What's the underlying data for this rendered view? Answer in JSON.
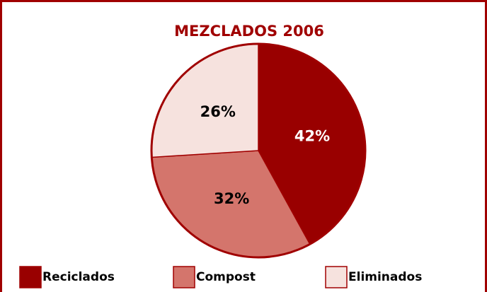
{
  "chart_data": {
    "type": "pie",
    "title": "MEZCLADOS 2006",
    "categories": [
      "Reciclados",
      "Compost",
      "Eliminados"
    ],
    "values": [
      42,
      32,
      26
    ],
    "value_labels": [
      "42%",
      "32%",
      "26%"
    ],
    "colors": [
      "#990000",
      "#d4756c",
      "#f6e2de"
    ],
    "label_colors": [
      "#ffffff",
      "#000000",
      "#000000"
    ]
  }
}
